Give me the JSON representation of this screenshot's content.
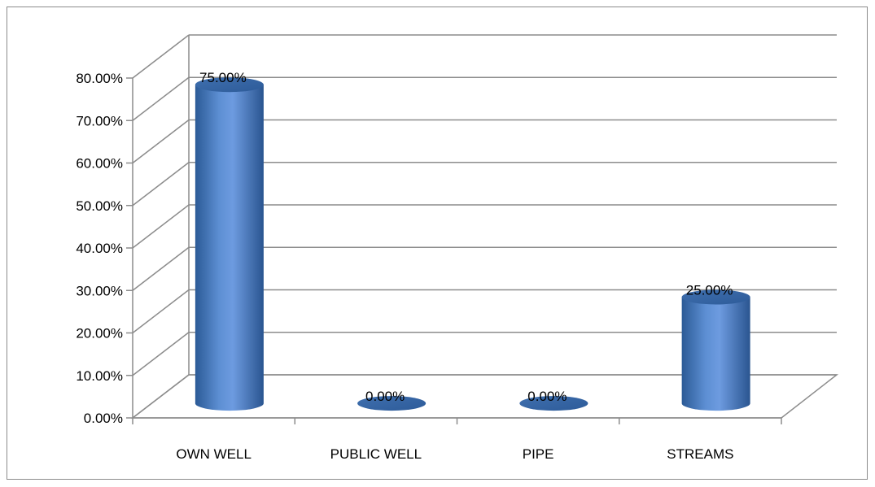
{
  "chart_data": {
    "type": "bar",
    "style": "3d-cylinder",
    "categories": [
      "OWN WELL",
      "PUBLIC WELL",
      "PIPE",
      "STREAMS"
    ],
    "values": [
      75.0,
      0.0,
      0.0,
      25.0
    ],
    "data_labels": [
      "75.00%",
      "0.00%",
      "0.00%",
      "25.00%"
    ],
    "y_ticks": [
      "0.00%",
      "10.00%",
      "20.00%",
      "30.00%",
      "40.00%",
      "50.00%",
      "60.00%",
      "70.00%",
      "80.00%"
    ],
    "ylim": [
      0,
      80
    ],
    "grid": true,
    "legend": "none",
    "bar_color": "#4f81bd"
  }
}
